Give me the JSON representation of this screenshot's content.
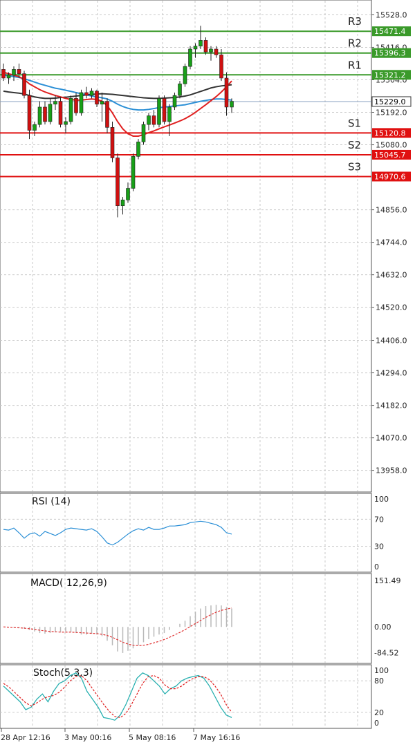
{
  "chart_data": [
    {
      "type": "candlestick",
      "panel": "price",
      "ylim": [
        13900,
        15560
      ],
      "y_ticks": [
        "15528.0",
        "15416.0",
        "15304.0",
        "15192.0",
        "15080.0",
        "14856.0",
        "14744.0",
        "14632.0",
        "14520.0",
        "14406.0",
        "14294.0",
        "14182.0",
        "14070.0",
        "13958.0"
      ],
      "current_price": "15229.0",
      "resistance": [
        {
          "name": "R1",
          "value": "15321.2"
        },
        {
          "name": "R2",
          "value": "15396.3"
        },
        {
          "name": "R3",
          "value": "15471.4"
        }
      ],
      "support": [
        {
          "name": "S1",
          "value": "15120.8"
        },
        {
          "name": "S2",
          "value": "15045.7"
        },
        {
          "name": "S3",
          "value": "14970.6"
        }
      ],
      "candles": [
        [
          15340,
          15360,
          15300,
          15310
        ],
        [
          15310,
          15330,
          15290,
          15320
        ],
        [
          15320,
          15350,
          15300,
          15340
        ],
        [
          15340,
          15360,
          15310,
          15325
        ],
        [
          15325,
          15335,
          15240,
          15250
        ],
        [
          15250,
          15270,
          15100,
          15130
        ],
        [
          15130,
          15160,
          15110,
          15150
        ],
        [
          15150,
          15230,
          15140,
          15210
        ],
        [
          15210,
          15230,
          15150,
          15160
        ],
        [
          15160,
          15240,
          15150,
          15220
        ],
        [
          15220,
          15250,
          15200,
          15230
        ],
        [
          15230,
          15245,
          15140,
          15150
        ],
        [
          15150,
          15175,
          15120,
          15160
        ],
        [
          15160,
          15250,
          15150,
          15240
        ],
        [
          15240,
          15260,
          15180,
          15190
        ],
        [
          15190,
          15270,
          15180,
          15260
        ],
        [
          15260,
          15280,
          15240,
          15250
        ],
        [
          15250,
          15275,
          15240,
          15265
        ],
        [
          15265,
          15270,
          15210,
          15220
        ],
        [
          15220,
          15260,
          15160,
          15230
        ],
        [
          15230,
          15240,
          15120,
          15140
        ],
        [
          15140,
          15160,
          15020,
          15035
        ],
        [
          15035,
          15050,
          14830,
          14870
        ],
        [
          14870,
          14900,
          14840,
          14890
        ],
        [
          14890,
          14950,
          14880,
          14930
        ],
        [
          14930,
          15050,
          14920,
          15040
        ],
        [
          15040,
          15100,
          15030,
          15090
        ],
        [
          15090,
          15160,
          15080,
          15150
        ],
        [
          15150,
          15190,
          15130,
          15180
        ],
        [
          15180,
          15200,
          15140,
          15150
        ],
        [
          15150,
          15250,
          15140,
          15240
        ],
        [
          15240,
          15250,
          15150,
          15160
        ],
        [
          15160,
          15220,
          15110,
          15210
        ],
        [
          15210,
          15260,
          15200,
          15250
        ],
        [
          15250,
          15300,
          15240,
          15290
        ],
        [
          15290,
          15360,
          15280,
          15350
        ],
        [
          15350,
          15420,
          15340,
          15410
        ],
        [
          15410,
          15430,
          15380,
          15420
        ],
        [
          15420,
          15490,
          15410,
          15440
        ],
        [
          15440,
          15450,
          15390,
          15400
        ],
        [
          15400,
          15420,
          15370,
          15410
        ],
        [
          15410,
          15420,
          15380,
          15390
        ],
        [
          15390,
          15410,
          15300,
          15310
        ],
        [
          15310,
          15330,
          15180,
          15210
        ],
        [
          15210,
          15240,
          15190,
          15230
        ]
      ],
      "moving_averages": [
        {
          "color": "#333333",
          "values": [
            15265,
            15262,
            15260,
            15258,
            15255,
            15250,
            15245,
            15242,
            15240,
            15240,
            15241,
            15243,
            15244,
            15246,
            15248,
            15250,
            15252,
            15254,
            15255,
            15256,
            15255,
            15254,
            15252,
            15250,
            15248,
            15246,
            15244,
            15242,
            15241,
            15240,
            15240,
            15241,
            15242,
            15243,
            15245,
            15248,
            15252,
            15258,
            15264,
            15270,
            15276,
            15280,
            15283,
            15285,
            15287
          ]
        },
        {
          "color": "#2a8fd6",
          "values": [
            15320,
            15318,
            15315,
            15312,
            15308,
            15302,
            15296,
            15290,
            15285,
            15280,
            15275,
            15272,
            15268,
            15264,
            15260,
            15256,
            15252,
            15248,
            15245,
            15242,
            15238,
            15230,
            15220,
            15212,
            15206,
            15202,
            15200,
            15200,
            15202,
            15205,
            15208,
            15210,
            15212,
            15214,
            15216,
            15218,
            15222,
            15226,
            15230,
            15233,
            15236,
            15238,
            15238,
            15236,
            15234
          ]
        },
        {
          "color": "#e02020",
          "values": [
            15330,
            15325,
            15320,
            15315,
            15305,
            15290,
            15280,
            15270,
            15262,
            15256,
            15250,
            15245,
            15240,
            15236,
            15234,
            15234,
            15236,
            15238,
            15236,
            15230,
            15215,
            15190,
            15160,
            15135,
            15118,
            15110,
            15110,
            15115,
            15122,
            15128,
            15135,
            15142,
            15148,
            15155,
            15162,
            15170,
            15180,
            15192,
            15205,
            15218,
            15232,
            15246,
            15262,
            15280,
            15300
          ]
        }
      ]
    },
    {
      "type": "line",
      "panel": "rsi",
      "title": "RSI (14)",
      "ylim": [
        0,
        100
      ],
      "y_ticks": [
        "100",
        "70",
        "30",
        "0"
      ],
      "levels": [
        70,
        30
      ],
      "values": [
        55,
        54,
        57,
        50,
        42,
        48,
        50,
        45,
        52,
        49,
        46,
        50,
        55,
        57,
        56,
        55,
        54,
        56,
        52,
        44,
        35,
        32,
        36,
        42,
        48,
        53,
        56,
        54,
        58,
        55,
        55,
        57,
        60,
        60,
        61,
        62,
        65,
        66,
        67,
        66,
        64,
        62,
        58,
        50,
        48
      ]
    },
    {
      "type": "bar",
      "panel": "macd",
      "title": "MACD( 12,26,9)",
      "ylim": [
        -110,
        165
      ],
      "y_ticks": [
        "151.49",
        "0.00",
        "-84.52"
      ],
      "histogram": [
        0,
        0,
        -2,
        -4,
        -6,
        -10,
        -15,
        -20,
        -22,
        -20,
        -18,
        -16,
        -15,
        -17,
        -20,
        -25,
        -25,
        -22,
        -25,
        -30,
        -45,
        -60,
        -80,
        -85,
        -78,
        -70,
        -60,
        -50,
        -40,
        -32,
        -25,
        -20,
        -10,
        0,
        10,
        20,
        35,
        50,
        60,
        68,
        70,
        72,
        70,
        65,
        60
      ],
      "signal": [
        0,
        -1,
        -2,
        -3,
        -4,
        -6,
        -8,
        -11,
        -13,
        -15,
        -16,
        -17,
        -17,
        -17,
        -18,
        -19,
        -20,
        -21,
        -22,
        -24,
        -28,
        -34,
        -42,
        -50,
        -56,
        -60,
        -61,
        -60,
        -57,
        -52,
        -47,
        -41,
        -34,
        -26,
        -18,
        -9,
        1,
        11,
        21,
        31,
        40,
        48,
        54,
        58,
        62
      ]
    },
    {
      "type": "line",
      "panel": "stoch",
      "title": "Stoch(5,3,3)",
      "ylim": [
        0,
        100
      ],
      "y_ticks": [
        "100",
        "80",
        "20",
        "0"
      ],
      "levels": [
        80,
        20
      ],
      "k": [
        70,
        60,
        50,
        40,
        25,
        30,
        45,
        55,
        40,
        60,
        75,
        80,
        90,
        95,
        85,
        60,
        45,
        30,
        10,
        8,
        5,
        15,
        35,
        60,
        85,
        95,
        90,
        80,
        70,
        55,
        65,
        70,
        80,
        85,
        88,
        90,
        85,
        70,
        50,
        30,
        15,
        10
      ],
      "d": [
        75,
        68,
        58,
        48,
        38,
        32,
        38,
        45,
        50,
        52,
        58,
        68,
        80,
        88,
        90,
        80,
        65,
        50,
        35,
        22,
        12,
        10,
        18,
        35,
        55,
        75,
        88,
        90,
        85,
        72,
        65,
        65,
        70,
        78,
        84,
        88,
        88,
        82,
        70,
        55,
        35,
        20
      ]
    }
  ],
  "x_labels": [
    "28 Apr 12:16",
    "3 May 00:16",
    "5 May 08:16",
    "7 May 16:16"
  ],
  "colors": {
    "up_candle": "#18a018",
    "down_candle": "#d01010",
    "resistance": "#3a9a2a",
    "support": "#e01010",
    "rsi": "#2a8fd6",
    "macd_signal": "#e03030",
    "stoch_k": "#28b0b0",
    "stoch_d": "#e02020",
    "grid": "#c8c8c8"
  }
}
